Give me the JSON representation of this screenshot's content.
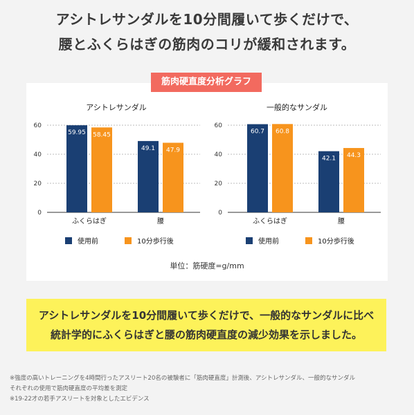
{
  "headline": {
    "line1": "アシトレサンダルを10分間履いて歩くだけで、",
    "line2": "腰とふくらはぎの筋肉のコリが緩和されます。"
  },
  "graph_tag": "筋肉硬直度分析グラフ",
  "unit_label": "単位：筋硬度=g/mm",
  "summary": {
    "line1": "アシトレサンダルを10分間履いて歩くだけで、一般的なサンダルに比べ",
    "line2": "統計学的にふくらはぎと腰の筋肉硬直度の減少効果を示しました。"
  },
  "notes": [
    "※強度の高いトレーニングを4時間行ったアスリート20名の被験者に「筋肉硬直度」計測後、アシトレサンダル、一般的なサンダル",
    "それぞれの使用で筋肉硬直度の平均差を測定",
    "※19-22才の若手アスリートを対象としたエビデンス"
  ],
  "colors": {
    "before": "#1a3f73",
    "after": "#f7941d",
    "tag": "#f26a5f",
    "summary_bg": "#fdf25a"
  },
  "chart_data": [
    {
      "type": "bar",
      "title": "アシトレサンダル",
      "categories": [
        "ふくらはぎ",
        "腰"
      ],
      "series": [
        {
          "name": "使用前",
          "values": [
            59.95,
            49.1
          ],
          "labels": [
            "59.95",
            "49.1"
          ]
        },
        {
          "name": "10分歩行後",
          "values": [
            58.45,
            47.9
          ],
          "labels": [
            "58.45",
            "47.9"
          ]
        }
      ],
      "yticks": [
        0,
        20,
        40,
        60
      ],
      "ylim": [
        0,
        60
      ],
      "grid": true,
      "legend": "bottom"
    },
    {
      "type": "bar",
      "title": "一般的なサンダル",
      "categories": [
        "ふくらはぎ",
        "腰"
      ],
      "series": [
        {
          "name": "使用前",
          "values": [
            60.7,
            42.1
          ],
          "labels": [
            "60.7",
            "42.1"
          ]
        },
        {
          "name": "10分歩行後",
          "values": [
            60.8,
            44.3
          ],
          "labels": [
            "60.8",
            "44.3"
          ]
        }
      ],
      "yticks": [
        0,
        20,
        40,
        60
      ],
      "ylim": [
        0,
        60
      ],
      "grid": true,
      "legend": "bottom"
    }
  ]
}
